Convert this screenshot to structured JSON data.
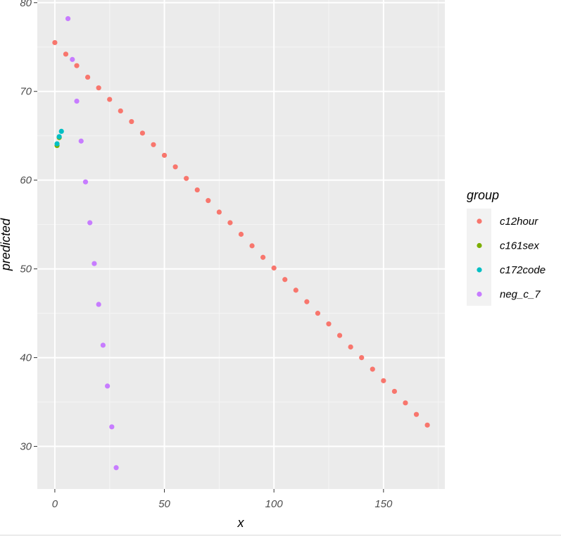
{
  "chart_data": {
    "type": "scatter",
    "title": "",
    "xlabel": "x",
    "ylabel": "predicted",
    "xlim": [
      -8,
      178
    ],
    "ylim": [
      25.2,
      80.3
    ],
    "x_ticks": [
      0,
      50,
      100,
      150
    ],
    "y_ticks": [
      30,
      40,
      50,
      60,
      70,
      80
    ],
    "grid": true,
    "legend": {
      "title": "group",
      "placement": "right"
    },
    "series": [
      {
        "name": "c12hour",
        "color": "#F8766D",
        "points": [
          [
            0,
            75.5
          ],
          [
            5,
            74.2
          ],
          [
            10,
            72.9
          ],
          [
            15,
            71.6
          ],
          [
            20,
            70.4
          ],
          [
            25,
            69.1
          ],
          [
            30,
            67.8
          ],
          [
            35,
            66.6
          ],
          [
            40,
            65.3
          ],
          [
            45,
            64.0
          ],
          [
            50,
            62.8
          ],
          [
            55,
            61.5
          ],
          [
            60,
            60.2
          ],
          [
            65,
            58.9
          ],
          [
            70,
            57.7
          ],
          [
            75,
            56.4
          ],
          [
            80,
            55.2
          ],
          [
            85,
            53.9
          ],
          [
            90,
            52.6
          ],
          [
            95,
            51.3
          ],
          [
            100,
            50.1
          ],
          [
            105,
            48.8
          ],
          [
            110,
            47.6
          ],
          [
            115,
            46.3
          ],
          [
            120,
            45.0
          ],
          [
            125,
            43.8
          ],
          [
            130,
            42.5
          ],
          [
            135,
            41.2
          ],
          [
            140,
            40.0
          ],
          [
            145,
            38.7
          ],
          [
            150,
            37.4
          ],
          [
            155,
            36.2
          ],
          [
            160,
            34.9
          ],
          [
            165,
            33.6
          ],
          [
            170,
            32.4
          ]
        ]
      },
      {
        "name": "c161sex",
        "color": "#7CAE00",
        "points": [
          [
            1,
            63.9
          ],
          [
            2,
            64.8
          ]
        ]
      },
      {
        "name": "c172code",
        "color": "#00BFC4",
        "points": [
          [
            1,
            64.1
          ],
          [
            2,
            64.9
          ],
          [
            3,
            65.5
          ]
        ]
      },
      {
        "name": "neg_c_7",
        "color": "#C77CFF",
        "points": [
          [
            6,
            78.2
          ],
          [
            8,
            73.6
          ],
          [
            10,
            68.9
          ],
          [
            12,
            64.4
          ],
          [
            14,
            59.8
          ],
          [
            16,
            55.2
          ],
          [
            18,
            50.6
          ],
          [
            20,
            46.0
          ],
          [
            22,
            41.4
          ],
          [
            24,
            36.8
          ],
          [
            26,
            32.2
          ],
          [
            28,
            27.6
          ]
        ]
      }
    ]
  },
  "colors": {
    "panel_background": "#EBEBEB",
    "grid_major": "#FFFFFF",
    "tick_label": "#4D4D4D"
  }
}
